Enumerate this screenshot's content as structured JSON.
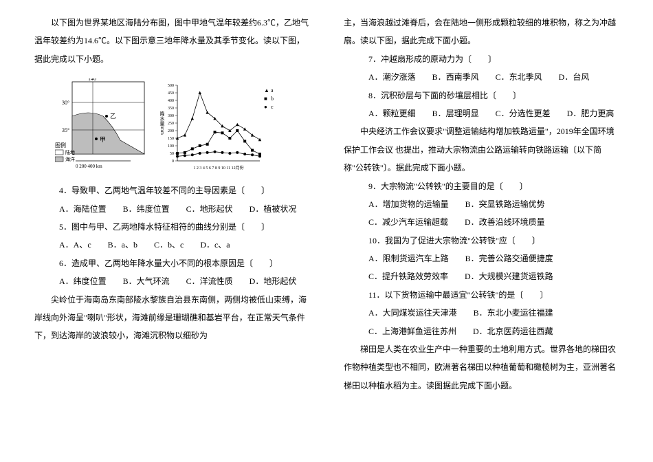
{
  "left": {
    "intro1": "以下图为世界某地区海陆分布图，图中甲地气温年较差约6.3℃，乙地气温年较差约为14.6℃。以下图示意三地年降水量及其季节变化。读以下图，据此完成以下小题。",
    "q4": "4．导致甲、乙两地气温年较差不同的主导因素是〔　　〕",
    "q4opts": "A．海陆位置　　B．纬度位置　　C．地形起伏　　D．植被状况",
    "q5": "5．图中与甲、乙两地降水特征相符的曲线分别是〔　　〕",
    "q5opts": "A．A、c　　B．a、b　　C．b、c　　D．c、a",
    "q6": "6．造成甲、乙两地年降水量大小不同的根本原因是〔　　〕",
    "q6opts": "A．纬度位置　　B．大气环流　　C．洋流性质　　D．地形起伏",
    "intro2a": "尖岭位于海南岛东南部陵水黎族自治县东南侧，两侧均被低山束缚，海岸线向外海呈\"喇叭\"形状，海滩前缘是珊瑚礁和基岩平台，在正常天气条件下，到达海岸的波浪较小，海滩沉积物以细砂为"
  },
  "right": {
    "intro2b": "主，当海浪越过滩脊后，会在陆地一侧形成颗粒较细的堆积物，称之为冲越扇。读以下图，据此完成下面小题。",
    "q7": "7．冲越扇形成的原动力为〔　　〕",
    "q7opts": "A．潮汐涨落　　B．西南季风　　C．东北季风　　D．台风",
    "q8": "8．沉积砂层与下面的砂壤层相比〔　　〕",
    "q8opts": "A．颗粒更细　　B．层理明显　　C．分选性更差　　D．肥力更高",
    "intro3": "中央经济工作会议要求\"调整运输结构增加铁路运量\"，2019年全国环境保护工作会议 也提出，推动大宗物流由公路运输转向铁路运输〔以下简称\"公转铁\"〕。据此完成下面小题。",
    "q9": "9．大宗物流\"公转铁\"的主要目的是〔　　〕",
    "q9opts": "A．增加货物的运输量　　B．突显铁路运输优势",
    "q9opts2": "C．减少汽车运输超载　　D．改善沿线环境质量",
    "q10": "10．我国为了促进大宗物流\"公转铁\"应〔　　〕",
    "q10opts": "A．限制货运汽车上路　　B．完善公路交通便捷度",
    "q10opts2": "C．提升铁路效劳效率　　D．大规模兴建货运铁路",
    "q11": "11．以下货物运输中最适宜\"公转铁\"的是〔　　〕",
    "q11opts": "A．大同煤炭运往天津港　　B．东北小麦运往福建",
    "q11opts2": "C．上海港鲜鱼运往苏州　　D．北京医药运往西藏",
    "intro4": "梯田是人类在农业生产中一种重要的土地利用方式。世界各地的梯田农作物种植类型也不相同，欧洲著名梯田以种植葡萄和橄榄树为主，亚洲著名梯田以种植水稻为主。读图据此完成下面小题。"
  },
  "map": {
    "legend_land": "陆地",
    "legend_sea": "海洋",
    "label_legend": "图例",
    "lon": "140°",
    "lat30": "30°",
    "lat35": "35°",
    "jia": "甲",
    "yi": "乙",
    "scale": "0  200  400 km"
  },
  "chart": {
    "ymax": 500,
    "yticks": [
      0,
      50,
      100,
      150,
      200,
      250,
      300,
      350,
      400,
      450,
      500
    ],
    "xlabel": "1 2 3 4 5 6 7 8 9 10 11 12月份",
    "ylabel": "降水量/mm",
    "series": {
      "a": {
        "label": "a",
        "marker": "triangle",
        "values": [
          150,
          170,
          280,
          450,
          320,
          280,
          230,
          200,
          240,
          210,
          170,
          140
        ]
      },
      "b": {
        "label": "b",
        "marker": "square",
        "values": [
          50,
          55,
          80,
          100,
          110,
          190,
          185,
          150,
          200,
          130,
          70,
          45
        ]
      },
      "c": {
        "label": "c",
        "marker": "circle",
        "values": [
          30,
          35,
          40,
          50,
          55,
          60,
          55,
          50,
          55,
          45,
          40,
          30
        ]
      }
    },
    "colors": {
      "line": "#000000",
      "grid": "#888888",
      "bg": "#ffffff"
    }
  }
}
